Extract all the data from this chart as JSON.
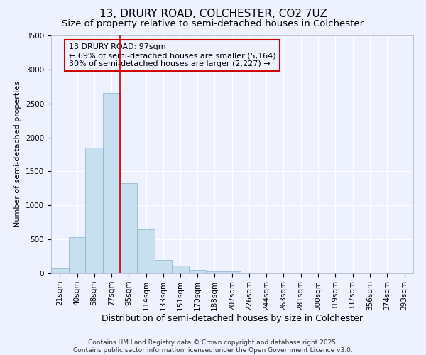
{
  "title1": "13, DRURY ROAD, COLCHESTER, CO2 7UZ",
  "title2": "Size of property relative to semi-detached houses in Colchester",
  "xlabel": "Distribution of semi-detached houses by size in Colchester",
  "ylabel": "Number of semi-detached properties",
  "bin_labels": [
    "21sqm",
    "40sqm",
    "58sqm",
    "77sqm",
    "95sqm",
    "114sqm",
    "133sqm",
    "151sqm",
    "170sqm",
    "188sqm",
    "207sqm",
    "226sqm",
    "244sqm",
    "263sqm",
    "281sqm",
    "300sqm",
    "319sqm",
    "337sqm",
    "356sqm",
    "374sqm",
    "393sqm"
  ],
  "bin_edges": [
    21,
    40,
    58,
    77,
    95,
    114,
    133,
    151,
    170,
    188,
    207,
    226,
    244,
    263,
    281,
    300,
    319,
    337,
    356,
    374,
    393
  ],
  "bar_heights": [
    75,
    535,
    1850,
    2650,
    1325,
    650,
    200,
    115,
    50,
    35,
    35,
    10,
    5,
    0,
    0,
    0,
    0,
    0,
    0,
    0,
    0
  ],
  "bar_color": "#c8dff0",
  "bar_edge_color": "#8ab0cc",
  "vline_x": 95,
  "vline_color": "#cc0000",
  "annotation_text": "13 DRURY ROAD: 97sqm\n← 69% of semi-detached houses are smaller (5,164)\n30% of semi-detached houses are larger (2,227) →",
  "annotation_box_color": "#cc0000",
  "ylim": [
    0,
    3500
  ],
  "yticks": [
    0,
    500,
    1000,
    1500,
    2000,
    2500,
    3000,
    3500
  ],
  "background_color": "#eef2ff",
  "footer_text": "Contains HM Land Registry data © Crown copyright and database right 2025.\nContains public sector information licensed under the Open Government Licence v3.0.",
  "title1_fontsize": 11,
  "title2_fontsize": 9.5,
  "xlabel_fontsize": 9,
  "ylabel_fontsize": 8,
  "tick_fontsize": 7.5,
  "annotation_fontsize": 8,
  "footer_fontsize": 6.5
}
